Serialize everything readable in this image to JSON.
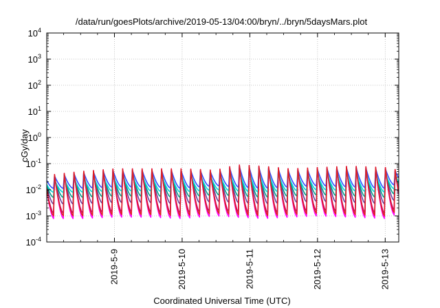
{
  "chart_data": {
    "type": "line",
    "title": "/data/run/goesPlots/archive/2019-05-13/04:00/bryn/../bryn/5daysMars.plot",
    "xlabel": "Coordinated Universal Time (UTC)",
    "ylabel": "cGy/day",
    "y_scale": "log",
    "ylim_exp": [
      -4,
      4
    ],
    "y_tick_exponents": [
      -4,
      -3,
      -2,
      -1,
      0,
      1,
      2,
      3,
      4
    ],
    "y_tick_base": "10",
    "xlim_days": [
      8.0,
      13.2
    ],
    "x_ticks": [
      {
        "label": "2019-5-9",
        "day": 9
      },
      {
        "label": "2019-5-10",
        "day": 10
      },
      {
        "label": "2019-5-11",
        "day": 11
      },
      {
        "label": "2019-5-12",
        "day": 12
      },
      {
        "label": "2019-5-13",
        "day": 13
      }
    ],
    "grid": true,
    "sawtooth_period_hours": 3.45,
    "envelope": {
      "days": [
        8.0,
        8.5,
        9.0,
        9.5,
        10.0,
        10.5,
        10.8,
        11.2,
        11.6,
        12.0,
        12.5,
        13.0,
        13.2
      ],
      "peak_log": [
        -1.45,
        -1.3,
        -1.2,
        -1.2,
        -1.2,
        -1.25,
        -1.05,
        -1.1,
        -1.2,
        -1.15,
        -1.1,
        -1.15,
        -1.25
      ],
      "trough_log": [
        -3.1,
        -3.1,
        -3.05,
        -3.05,
        -3.1,
        -3.0,
        -3.05,
        -3.1,
        -3.05,
        -3.0,
        -3.05,
        -3.1,
        -2.9
      ]
    },
    "series": [
      {
        "color": "#ff00ff",
        "peak_offset": 0.0,
        "trough_offset": 0.0
      },
      {
        "color": "#c0008a",
        "peak_offset": -0.05,
        "trough_offset": 0.2
      },
      {
        "color": "#6a3d9a",
        "peak_offset": -0.1,
        "trough_offset": 0.55
      },
      {
        "color": "#00a08a",
        "peak_offset": -0.15,
        "trough_offset": 0.8
      },
      {
        "color": "#00d8d8",
        "peak_offset": -0.2,
        "trough_offset": 1.0
      },
      {
        "color": "#3050ff",
        "peak_offset": -0.05,
        "trough_offset": 1.15
      },
      {
        "color": "#e02020",
        "peak_offset": 0.0,
        "trough_offset": 0.1
      }
    ]
  }
}
